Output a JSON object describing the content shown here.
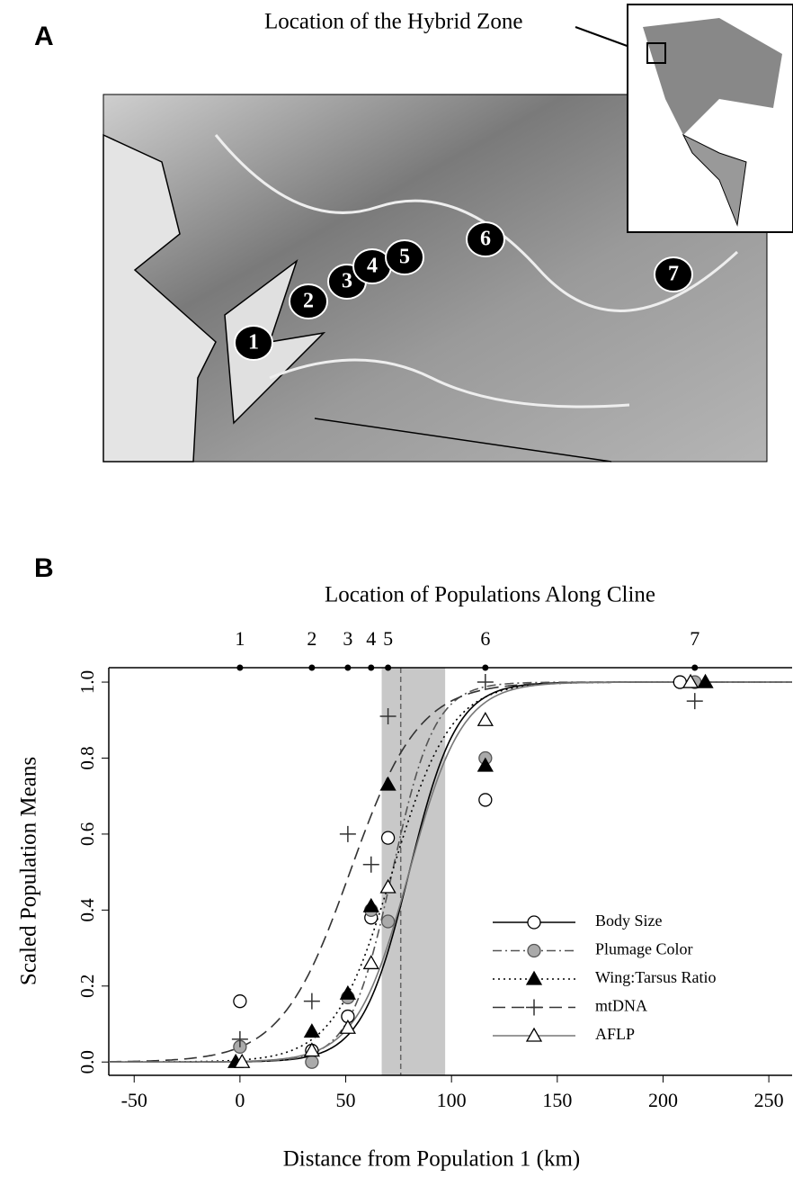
{
  "panel_a": {
    "label": "A",
    "title": "Location of the Hybrid Zone",
    "sites": [
      "1",
      "2",
      "3",
      "4",
      "5",
      "6",
      "7"
    ]
  },
  "chart_data": {
    "type": "scatter",
    "label": "B",
    "title": "Location of Populations Along Cline",
    "xlabel": "Distance from Population 1 (km)",
    "ylabel": "Scaled Population Means",
    "xlim": [
      -62,
      261
    ],
    "xticks": [
      -50,
      0,
      50,
      100,
      150,
      200,
      250
    ],
    "ylim": [
      -0.035,
      1.038
    ],
    "yticks": [
      {
        "value": 0,
        "label": "0.0"
      },
      0.2,
      0.4,
      0.6,
      0.8,
      {
        "value": 1,
        "label": "1.0"
      }
    ],
    "population_positions": [
      0,
      34,
      51,
      62,
      70,
      116,
      215
    ],
    "population_labels": [
      "1",
      "2",
      "3",
      "4",
      "5",
      "6",
      "7"
    ],
    "center_interval": [
      67,
      97
    ],
    "cline_center": 76,
    "legend": "lower right",
    "series": [
      {
        "name": "Body Size",
        "marker": "circle-open",
        "color": "#000000",
        "line_style": "solid",
        "cline_center": 80,
        "cline_width": 45,
        "x": [
          0,
          34,
          51,
          62,
          70,
          116,
          208
        ],
        "values": [
          0.16,
          0.03,
          0.12,
          0.38,
          0.59,
          0.69,
          1.0
        ]
      },
      {
        "name": "Plumage Color",
        "marker": "circle-gray",
        "color": "#555555",
        "line_style": "dashdot",
        "cline_center": 72,
        "cline_width": 40,
        "x": [
          0,
          34,
          51,
          62,
          70,
          116,
          215
        ],
        "values": [
          0.04,
          0.0,
          0.17,
          0.4,
          0.37,
          0.8,
          1.0
        ]
      },
      {
        "name": "Wing:Tarsus Ratio",
        "marker": "triangle-filled",
        "color": "#000000",
        "line_style": "dotted",
        "cline_center": 72,
        "cline_width": 55,
        "x": [
          -2,
          34,
          51,
          62,
          70,
          116,
          220
        ],
        "values": [
          0.0,
          0.08,
          0.18,
          0.41,
          0.73,
          0.78,
          1.0
        ]
      },
      {
        "name": "mtDNA",
        "marker": "plus",
        "color": "#333333",
        "line_style": "dashed",
        "cline_center": 52,
        "cline_width": 65,
        "x": [
          0,
          34,
          51,
          62,
          70,
          116,
          215
        ],
        "values": [
          0.06,
          0.16,
          0.6,
          0.52,
          0.91,
          1.0,
          0.95
        ]
      },
      {
        "name": "AFLP",
        "marker": "triangle-open",
        "color": "#777777",
        "line_style": "solid",
        "cline_center": 80,
        "cline_width": 50,
        "x": [
          1,
          34,
          51,
          62,
          70,
          116,
          213
        ],
        "values": [
          0.0,
          0.03,
          0.09,
          0.26,
          0.46,
          0.9,
          1.0
        ]
      }
    ]
  }
}
